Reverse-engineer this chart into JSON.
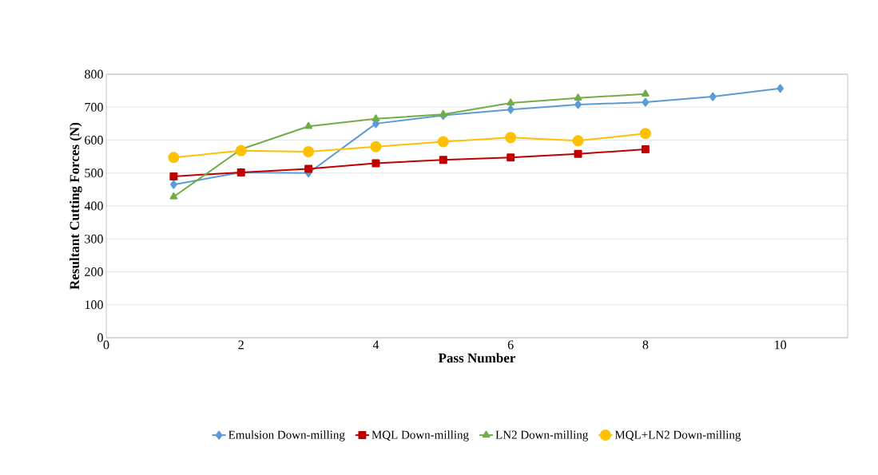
{
  "chart_data": {
    "type": "line",
    "xlabel": "Pass Number",
    "ylabel": "Resultant Cutting Forces (N)",
    "xlim": [
      0,
      11
    ],
    "xticks": [
      0,
      2,
      4,
      6,
      8,
      10
    ],
    "ylim": [
      0,
      800
    ],
    "yticks": [
      0,
      100,
      200,
      300,
      400,
      500,
      600,
      700,
      800
    ],
    "grid": "y",
    "legend": "bottom",
    "line_style": "solid",
    "series": [
      {
        "name": "Emulsion Down-milling",
        "color": "#5b9bd5",
        "marker": "diamond",
        "x": [
          1,
          2,
          3,
          4,
          5,
          6,
          7,
          8,
          9,
          10
        ],
        "values": [
          465,
          502,
          500,
          650,
          675,
          693,
          708,
          715,
          732,
          757
        ]
      },
      {
        "name": "MQL Down-milling",
        "color": "#c00000",
        "marker": "square",
        "x": [
          1,
          2,
          3,
          4,
          5,
          6,
          7,
          8
        ],
        "values": [
          490,
          502,
          513,
          530,
          540,
          547,
          558,
          572
        ]
      },
      {
        "name": "LN2 Down-milling",
        "color": "#70ad47",
        "marker": "triangle",
        "x": [
          1,
          2,
          3,
          4,
          5,
          6,
          7,
          8
        ],
        "values": [
          428,
          572,
          642,
          665,
          678,
          713,
          728,
          740
        ]
      },
      {
        "name": "MQL+LN2 Down-milling",
        "color": "#ffc000",
        "marker": "circle",
        "x": [
          1,
          2,
          3,
          4,
          5,
          6,
          7,
          8
        ],
        "values": [
          547,
          568,
          565,
          580,
          595,
          608,
          598,
          620
        ]
      }
    ]
  }
}
